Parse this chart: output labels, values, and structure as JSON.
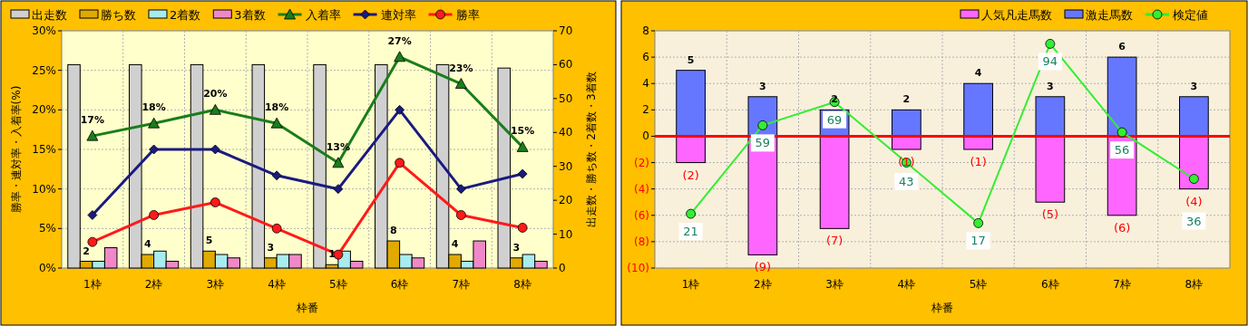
{
  "chart_data": [
    {
      "type": "bar",
      "categories": [
        "1枠",
        "2枠",
        "3枠",
        "4枠",
        "5枠",
        "6枠",
        "7枠",
        "8枠"
      ],
      "xlabel": "枠番",
      "ylabel": "勝率・連対率・入着率(%)",
      "y2label": "出走数・勝ち数・2着数・3着数",
      "ylim": [
        0,
        30
      ],
      "yticks": [
        {
          "value": 0,
          "label": "0%"
        },
        {
          "value": 5,
          "label": "5%"
        },
        {
          "value": 10,
          "label": "10%"
        },
        {
          "value": 15,
          "label": "15%"
        },
        {
          "value": 20,
          "label": "20%"
        },
        {
          "value": 25,
          "label": "25%"
        },
        {
          "value": 30,
          "label": "30%"
        }
      ],
      "y2lim": [
        0,
        70
      ],
      "y2ticks": [
        0,
        10,
        20,
        30,
        40,
        50,
        60,
        70
      ],
      "grid": true,
      "legend": "top left",
      "series": [
        {
          "name": "出走数",
          "color": "#d0d0d0",
          "axis": "y2",
          "values": [
            60,
            60,
            60,
            60,
            60,
            60,
            60,
            59
          ]
        },
        {
          "name": "勝ち数",
          "color": "#e0aa00",
          "axis": "y2",
          "values": [
            2,
            4,
            5,
            3,
            1,
            8,
            4,
            3
          ],
          "value_labels": [
            "2",
            "4",
            "5",
            "3",
            "1",
            "8",
            "4",
            "3"
          ]
        },
        {
          "name": "2着数",
          "color": "#a8ecf0",
          "axis": "y2",
          "values": [
            2,
            5,
            4,
            4,
            5,
            4,
            2,
            4
          ]
        },
        {
          "name": "3着数",
          "color": "#f088c8",
          "axis": "y2",
          "values": [
            6,
            2,
            3,
            4,
            2,
            3,
            8,
            2
          ]
        },
        {
          "name": "入着率",
          "type": "line",
          "color": "#1a7d1a",
          "marker": "triangle",
          "values": [
            16.7,
            18.3,
            20,
            18.3,
            13.3,
            26.7,
            23.3,
            15.3
          ],
          "value_labels": [
            "17%",
            "18%",
            "20%",
            "18%",
            "13%",
            "27%",
            "23%",
            "15%"
          ]
        },
        {
          "name": "連対率",
          "type": "line",
          "color": "#1a1a80",
          "marker": "diamond",
          "values": [
            6.7,
            15,
            15,
            11.7,
            10,
            20,
            10,
            11.9
          ]
        },
        {
          "name": "勝率",
          "type": "line",
          "color": "#ff1a1a",
          "marker": "circle",
          "values": [
            3.3,
            6.7,
            8.3,
            5,
            1.7,
            13.3,
            6.7,
            5.1
          ]
        }
      ]
    },
    {
      "type": "bar",
      "stacked": true,
      "categories": [
        "1枠",
        "2枠",
        "3枠",
        "4枠",
        "5枠",
        "6枠",
        "7枠",
        "8枠"
      ],
      "xlabel": "枠番",
      "ylim": [
        -10,
        8
      ],
      "yticks": [
        {
          "value": -10,
          "label": "(10)"
        },
        {
          "value": -8,
          "label": "(8)"
        },
        {
          "value": -6,
          "label": "(6)"
        },
        {
          "value": -4,
          "label": "(4)"
        },
        {
          "value": -2,
          "label": "(2)"
        },
        0,
        2,
        4,
        6,
        8
      ],
      "grid": true,
      "legend": "top right",
      "y2lim": [
        -2.3,
        99.6
      ],
      "ref_lines": [
        {
          "axis": "y",
          "value": 0,
          "color": "#ff0000"
        }
      ],
      "series": [
        {
          "name": "人気凡走馬数",
          "color": "#ff66ff",
          "values": [
            -2,
            -9,
            -7,
            -1,
            -1,
            -5,
            -6,
            -4
          ],
          "value_labels": [
            "(2)",
            "(9)",
            "(7)",
            "(1)",
            "(1)",
            "(5)",
            "(6)",
            "(4)"
          ]
        },
        {
          "name": "激走馬数",
          "color": "#6677ff",
          "values": [
            5,
            3,
            2,
            2,
            4,
            3,
            6,
            3
          ],
          "value_labels": [
            "5",
            "3",
            "2",
            "2",
            "4",
            "3",
            "6",
            "3"
          ]
        },
        {
          "name": "検定値",
          "type": "line",
          "axis": "y2",
          "color": "#33ee33",
          "marker": "circle",
          "values": [
            21,
            59,
            69,
            43,
            17,
            94,
            56,
            36
          ],
          "value_labels": [
            "21",
            "59",
            "69",
            "43",
            "17",
            "94",
            "56",
            "36"
          ]
        }
      ]
    }
  ]
}
